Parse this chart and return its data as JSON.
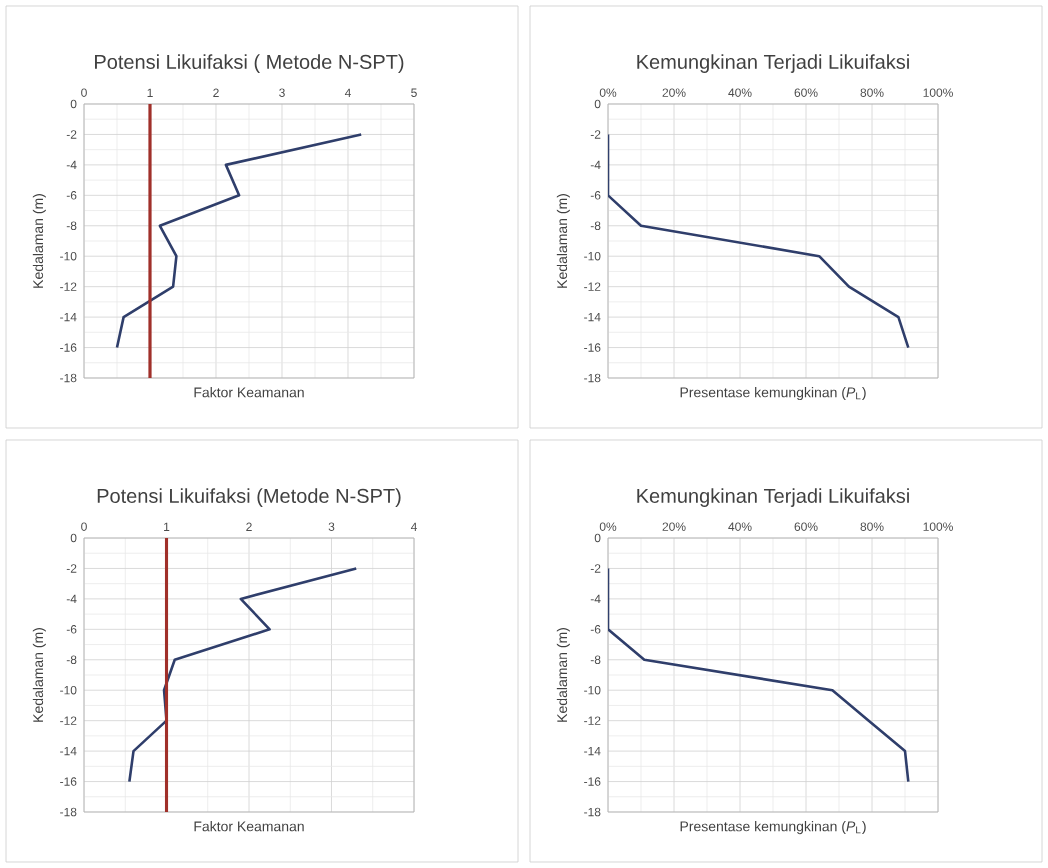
{
  "chart_data": [
    {
      "type": "line",
      "title": "Potensi Likuifaksi ( Metode N-SPT)",
      "xlabel": "Faktor Keamanan",
      "ylabel": "Kedalaman (m)",
      "xlim": [
        0,
        5
      ],
      "xticks": [
        0,
        1,
        2,
        3,
        4,
        5
      ],
      "ylim": [
        -18,
        0
      ],
      "yticks": [
        -18,
        -16,
        -14,
        -12,
        -10,
        -8,
        -6,
        -4,
        -2,
        0
      ],
      "grid": true,
      "series": [
        {
          "color": "#2f3e6b",
          "x": [
            4.2,
            2.15,
            2.35,
            1.15,
            1.4,
            1.35,
            0.6,
            0.5
          ],
          "values": [
            -2,
            -4,
            -6,
            -8,
            -10,
            -12,
            -14,
            -16
          ]
        }
      ],
      "ref_lines": [
        {
          "axis": "x",
          "value": 1,
          "color": "#a0302a"
        }
      ]
    },
    {
      "type": "line",
      "title": "Kemungkinan Terjadi Likuifaksi",
      "xlabel": "Presentase kemungkinan (*P*$_{L}$)",
      "ylabel": "Kedalaman (m)",
      "xlim": [
        0,
        100
      ],
      "xticks": [
        {
          "value": 0,
          "label": "0%"
        },
        {
          "value": 20,
          "label": "20%"
        },
        {
          "value": 40,
          "label": "40%"
        },
        {
          "value": 60,
          "label": "60%"
        },
        {
          "value": 80,
          "label": "80%"
        },
        {
          "value": 100,
          "label": "100%"
        }
      ],
      "ylim": [
        -18,
        0
      ],
      "yticks": [
        -18,
        -16,
        -14,
        -12,
        -10,
        -8,
        -6,
        -4,
        -2,
        0
      ],
      "grid": true,
      "series": [
        {
          "color": "#2f3e6b",
          "x": [
            0,
            0,
            10,
            64,
            73,
            88,
            91
          ],
          "values": [
            -2,
            -6,
            -8,
            -10,
            -12,
            -14,
            -16
          ]
        }
      ]
    },
    {
      "type": "line",
      "title": "Potensi Likuifaksi  (Metode N-SPT)",
      "xlabel": "Faktor Keamanan",
      "ylabel": "Kedalaman (m)",
      "xlim": [
        0,
        4
      ],
      "xticks": [
        0,
        1,
        2,
        3,
        4
      ],
      "ylim": [
        -18,
        0
      ],
      "yticks": [
        -18,
        -16,
        -14,
        -12,
        -10,
        -8,
        -6,
        -4,
        -2,
        0
      ],
      "grid": true,
      "series": [
        {
          "color": "#2f3e6b",
          "x": [
            3.3,
            1.9,
            2.25,
            1.1,
            0.97,
            1.0,
            0.6,
            0.55
          ],
          "values": [
            -2,
            -4,
            -6,
            -8,
            -10,
            -12,
            -14,
            -16
          ]
        }
      ],
      "ref_lines": [
        {
          "axis": "x",
          "value": 1,
          "color": "#a0302a"
        }
      ]
    },
    {
      "type": "line",
      "title": "Kemungkinan Terjadi Likuifaksi",
      "xlabel": "Presentase kemungkinan (*P*$_{L}$)",
      "ylabel": "Kedalaman (m)",
      "xlim": [
        0,
        100
      ],
      "xticks": [
        {
          "value": 0,
          "label": "0%"
        },
        {
          "value": 20,
          "label": "20%"
        },
        {
          "value": 40,
          "label": "40%"
        },
        {
          "value": 60,
          "label": "60%"
        },
        {
          "value": 80,
          "label": "80%"
        },
        {
          "value": 100,
          "label": "100%"
        }
      ],
      "ylim": [
        -18,
        0
      ],
      "yticks": [
        -18,
        -16,
        -14,
        -12,
        -10,
        -8,
        -6,
        -4,
        -2,
        0
      ],
      "grid": true,
      "series": [
        {
          "color": "#2f3e6b",
          "x": [
            0,
            0,
            11,
            68,
            79,
            90,
            91
          ],
          "values": [
            -2,
            -6,
            -8,
            -10,
            -12,
            -14,
            -16
          ]
        }
      ]
    }
  ]
}
